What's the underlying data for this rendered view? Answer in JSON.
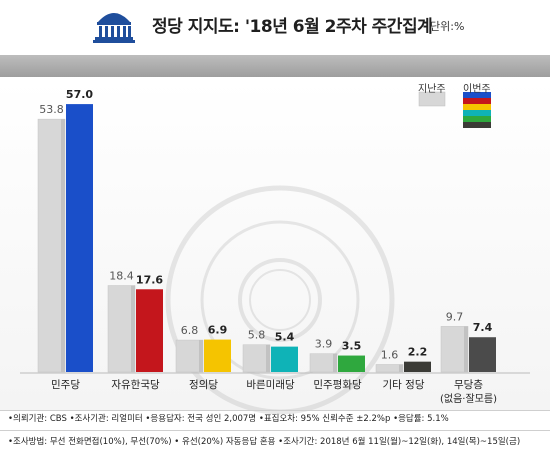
{
  "header": {
    "title": "정당 지지도: '18년 6월 2주차 주간집계",
    "unit": "단위:%"
  },
  "legend": {
    "previous": "지난주",
    "current": "이번주"
  },
  "footer": {
    "line1": "•의뢰기관: CBS  •조사기관: 리얼미터  •응용답자: 전국 성인 2,007명  •표집오차: 95% 신뢰수준 ±2.2%p  •응답률: 5.1%",
    "line2": "•조사방법: 무선 전화면접(10%), 무선(70%) • 유선(20%) 자동응답 혼용  •조사기간: 2018년 6월 11일(월)~12일(화), 14일(목)~15일(금)"
  },
  "chart_data": {
    "type": "bar",
    "title": "정당 지지도: '18년 6월 2주차 주간집계",
    "unit": "단위:%",
    "categories": [
      "민주당",
      "자유한국당",
      "정의당",
      "바른미래당",
      "민주평화당",
      "기타 정당",
      "무당층"
    ],
    "category_sublabels": [
      "",
      "",
      "",
      "",
      "",
      "",
      "(없음·잘모름)"
    ],
    "series": [
      {
        "name": "지난주",
        "values": [
          53.8,
          18.4,
          6.8,
          5.8,
          3.9,
          1.6,
          9.7
        ],
        "color": "#d7d7d7"
      },
      {
        "name": "이번주",
        "values": [
          57.0,
          17.6,
          6.9,
          5.4,
          3.5,
          2.2,
          7.4
        ],
        "colors": [
          "#1a4fc9",
          "#c4161c",
          "#f5c400",
          "#0fb3b7",
          "#2fa83e",
          "#3b3b36",
          "#4b4b4b"
        ]
      }
    ],
    "value_labels": {
      "previous": [
        "53.8",
        "18.4",
        "6.8",
        "5.8",
        "3.9",
        "1.6",
        "9.7"
      ],
      "current": [
        "57.0",
        "17.6",
        "6.9",
        "5.4",
        "3.5",
        "2.2",
        "7.4"
      ]
    },
    "ylim": [
      0,
      60
    ],
    "grid": false,
    "legend_position": "top-right"
  }
}
